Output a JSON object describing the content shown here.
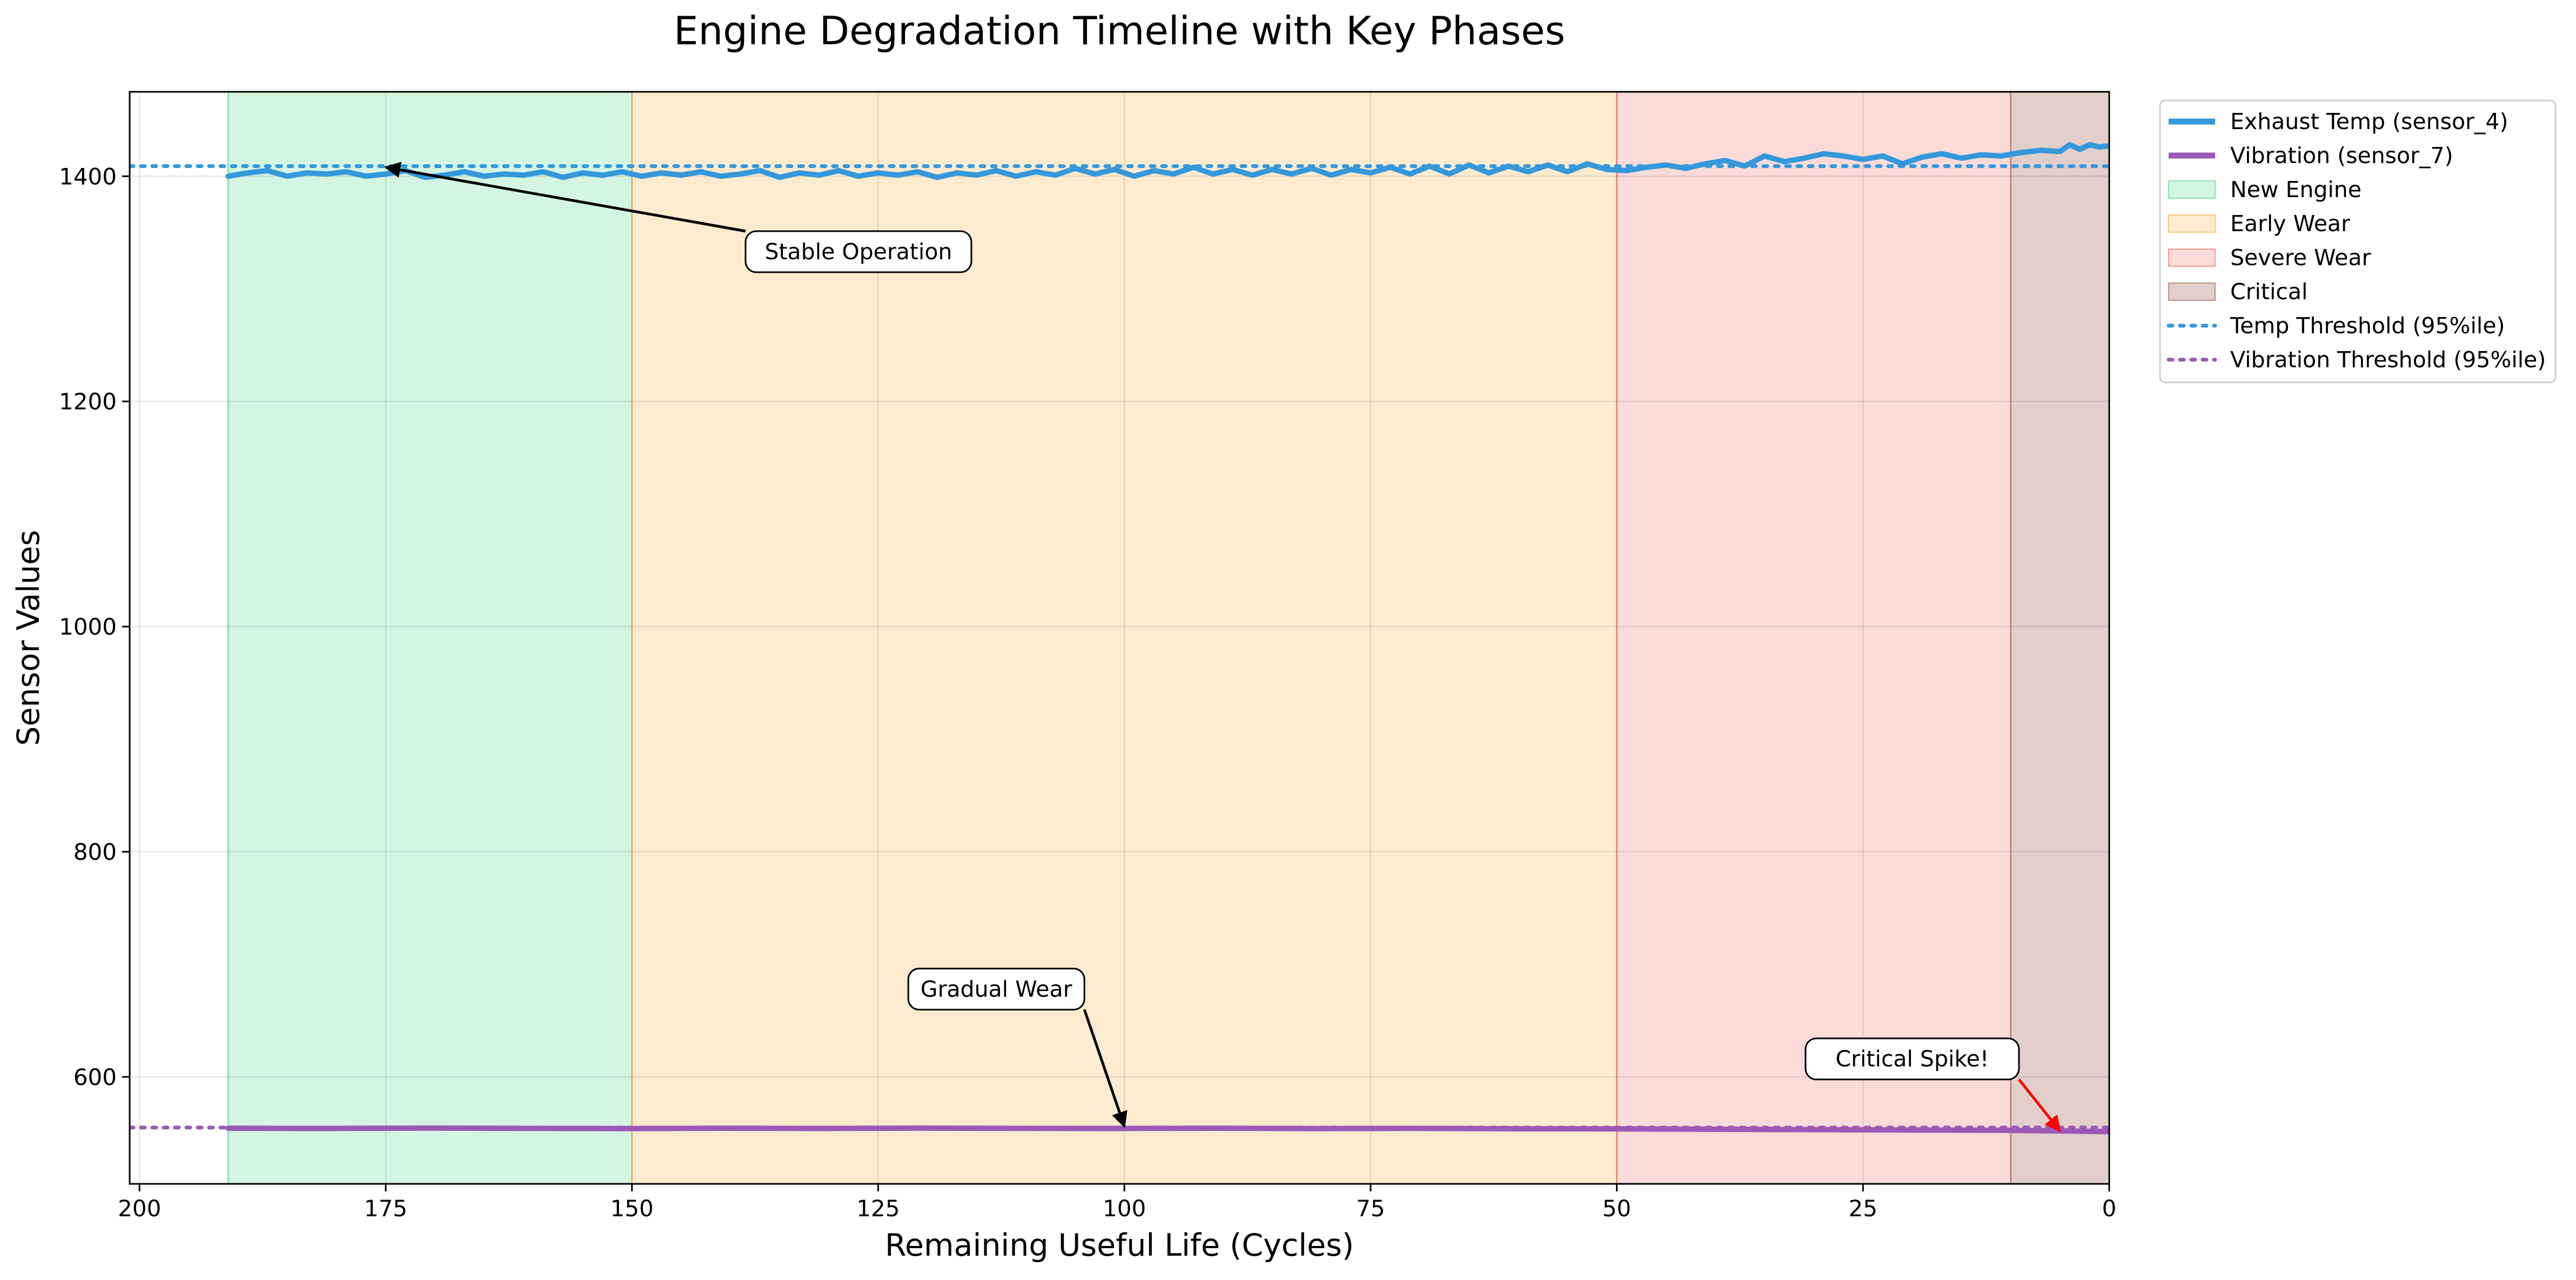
{
  "chart_data": {
    "type": "line",
    "title": "Engine Degradation Timeline with Key Phases",
    "xlabel": "Remaining Useful Life (Cycles)",
    "ylabel": "Sensor Values",
    "xlim": [
      201,
      0
    ],
    "ylim": [
      505,
      1475
    ],
    "x_ticks": [
      200,
      175,
      150,
      125,
      100,
      75,
      50,
      25,
      0
    ],
    "y_ticks": [
      600,
      800,
      1000,
      1200,
      1400
    ],
    "grid": true,
    "legend_position": "outside-top-right",
    "phases": [
      {
        "name": "New Engine",
        "from": 191,
        "to": 150,
        "color": "#2ecc71",
        "opacity": 0.2
      },
      {
        "name": "Early Wear",
        "from": 150,
        "to": 50,
        "color": "#f39c12",
        "opacity": 0.2
      },
      {
        "name": "Severe Wear",
        "from": 50,
        "to": 10,
        "color": "#e74c3c",
        "opacity": 0.2
      },
      {
        "name": "Critical",
        "from": 10,
        "to": 0,
        "color": "#8b3a2f",
        "opacity": 0.25
      }
    ],
    "thresholds": [
      {
        "name": "Temp Threshold (95%ile)",
        "value": 1409,
        "color": "#3498db"
      },
      {
        "name": "Vibration Threshold (95%ile)",
        "value": 555,
        "color": "#9b59b6"
      }
    ],
    "series": [
      {
        "name": "Exhaust Temp (sensor_4)",
        "color": "#3498db",
        "points": [
          [
            191,
            1400
          ],
          [
            189,
            1403
          ],
          [
            187,
            1405
          ],
          [
            185,
            1400
          ],
          [
            183,
            1403
          ],
          [
            181,
            1402
          ],
          [
            179,
            1404
          ],
          [
            177,
            1400
          ],
          [
            175,
            1402
          ],
          [
            173,
            1405
          ],
          [
            171,
            1399
          ],
          [
            169,
            1401
          ],
          [
            167,
            1404
          ],
          [
            165,
            1400
          ],
          [
            163,
            1402
          ],
          [
            161,
            1401
          ],
          [
            159,
            1404
          ],
          [
            157,
            1399
          ],
          [
            155,
            1403
          ],
          [
            153,
            1401
          ],
          [
            151,
            1404
          ],
          [
            149,
            1400
          ],
          [
            147,
            1403
          ],
          [
            145,
            1401
          ],
          [
            143,
            1404
          ],
          [
            141,
            1400
          ],
          [
            139,
            1402
          ],
          [
            137,
            1405
          ],
          [
            135,
            1399
          ],
          [
            133,
            1403
          ],
          [
            131,
            1401
          ],
          [
            129,
            1405
          ],
          [
            127,
            1400
          ],
          [
            125,
            1403
          ],
          [
            123,
            1401
          ],
          [
            121,
            1404
          ],
          [
            119,
            1399
          ],
          [
            117,
            1403
          ],
          [
            115,
            1401
          ],
          [
            113,
            1405
          ],
          [
            111,
            1400
          ],
          [
            109,
            1404
          ],
          [
            107,
            1401
          ],
          [
            105,
            1407
          ],
          [
            103,
            1402
          ],
          [
            101,
            1406
          ],
          [
            99,
            1400
          ],
          [
            97,
            1405
          ],
          [
            95,
            1402
          ],
          [
            93,
            1408
          ],
          [
            91,
            1402
          ],
          [
            89,
            1406
          ],
          [
            87,
            1401
          ],
          [
            85,
            1406
          ],
          [
            83,
            1402
          ],
          [
            81,
            1407
          ],
          [
            79,
            1401
          ],
          [
            77,
            1406
          ],
          [
            75,
            1403
          ],
          [
            73,
            1408
          ],
          [
            71,
            1402
          ],
          [
            69,
            1409
          ],
          [
            67,
            1402
          ],
          [
            65,
            1410
          ],
          [
            63,
            1403
          ],
          [
            61,
            1409
          ],
          [
            59,
            1404
          ],
          [
            57,
            1410
          ],
          [
            55,
            1404
          ],
          [
            53,
            1411
          ],
          [
            51,
            1406
          ],
          [
            49,
            1405
          ],
          [
            47,
            1408
          ],
          [
            45,
            1410
          ],
          [
            43,
            1407
          ],
          [
            41,
            1411
          ],
          [
            39,
            1414
          ],
          [
            37,
            1409
          ],
          [
            35,
            1418
          ],
          [
            33,
            1413
          ],
          [
            31,
            1416
          ],
          [
            29,
            1420
          ],
          [
            27,
            1418
          ],
          [
            25,
            1415
          ],
          [
            23,
            1418
          ],
          [
            21,
            1411
          ],
          [
            19,
            1417
          ],
          [
            17,
            1420
          ],
          [
            15,
            1416
          ],
          [
            13,
            1419
          ],
          [
            11,
            1418
          ],
          [
            9,
            1421
          ],
          [
            7,
            1423
          ],
          [
            5,
            1422
          ],
          [
            4,
            1428
          ],
          [
            3,
            1424
          ],
          [
            2,
            1428
          ],
          [
            1,
            1426
          ],
          [
            0,
            1427
          ]
        ]
      },
      {
        "name": "Vibration (sensor_7)",
        "color": "#9b59b6",
        "points": [
          [
            191,
            554.4
          ],
          [
            181,
            554.2
          ],
          [
            171,
            554.5
          ],
          [
            161,
            554.3
          ],
          [
            151,
            554.1
          ],
          [
            141,
            554.4
          ],
          [
            131,
            554.2
          ],
          [
            121,
            554.5
          ],
          [
            111,
            554.3
          ],
          [
            101,
            554.2
          ],
          [
            91,
            554.4
          ],
          [
            81,
            554.1
          ],
          [
            71,
            554.3
          ],
          [
            61,
            554.0
          ],
          [
            51,
            553.9
          ],
          [
            41,
            553.5
          ],
          [
            31,
            553.2
          ],
          [
            21,
            552.9
          ],
          [
            11,
            552.6
          ],
          [
            5,
            552.0
          ],
          [
            0,
            551.4
          ]
        ]
      }
    ],
    "legend": [
      "Exhaust Temp (sensor_4)",
      "Vibration (sensor_7)",
      "New Engine",
      "Early Wear",
      "Severe Wear",
      "Critical",
      "Temp Threshold (95%ile)",
      "Vibration Threshold (95%ile)"
    ],
    "annotations": [
      {
        "text": "Stable Operation",
        "target": [
          175,
          1408
        ],
        "text_at": [
          127,
          1333
        ],
        "color": "#000000"
      },
      {
        "text": "Gradual Wear",
        "target": [
          100,
          556
        ],
        "text_at": [
          113,
          678
        ],
        "color": "#000000"
      },
      {
        "text": "Critical Spike!",
        "target": [
          5,
          552
        ],
        "text_at": [
          20,
          616
        ],
        "color": "#ff0000"
      }
    ]
  }
}
